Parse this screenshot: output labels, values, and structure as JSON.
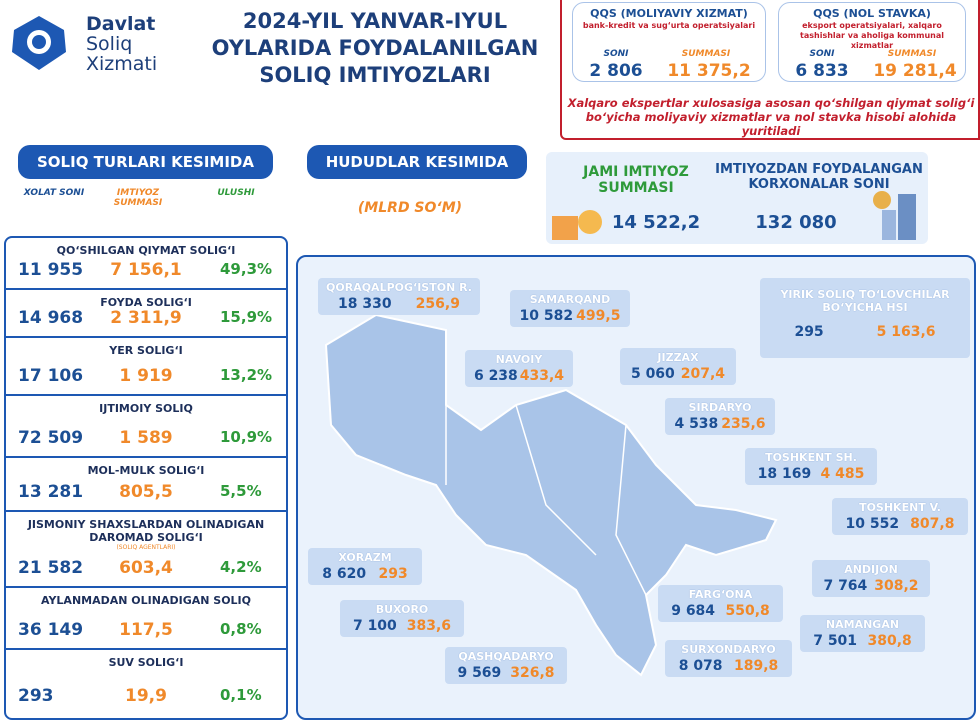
{
  "logo": {
    "lines": [
      "Davlat",
      "Soliq",
      "Xizmati"
    ]
  },
  "title": [
    "2024-YIL YANVAR-IYUL",
    "OYLARIDA FOYDALANILGAN",
    "SOLIQ IMTIYOZLARI"
  ],
  "qqs": [
    {
      "title": "QQS (MOLIYAVIY XIZMAT)",
      "subtitle": "bank-kredit va sug‘urta operatsiyalari",
      "count_label": "SONI",
      "sum_label": "SUMMASI",
      "count": "2 806",
      "sum": "11 375,2"
    },
    {
      "title": "QQS (NOL STAVKA)",
      "subtitle": "eksport operatsiyalari, xalqaro tashishlar va aholiga kommunal xizmatlar",
      "count_label": "SONI",
      "sum_label": "SUMMASI",
      "count": "6 833",
      "sum": "19 281,4"
    }
  ],
  "qqs_note": "Xalqaro ekspertlar xulosasiga asosan qo‘shilgan qiymat solig‘i bo‘yicha moliyaviy xizmatlar va nol stavka hisobi alohida yuritiladi",
  "tax_section": {
    "heading": "SOLIQ TURLARI KESIMIDA",
    "columns": [
      "XOLAT SONI",
      "IMTIYOZ SUMMASI",
      "ULUSHI"
    ],
    "rows": [
      {
        "name": "QO‘SHILGAN QIYMAT SOLIG‘I",
        "count": "11 955",
        "sum": "7 156,1",
        "share": "49,3%"
      },
      {
        "name": "FOYDA SOLIG‘I",
        "count": "14 968",
        "sum": "2 311,9",
        "share": "15,9%"
      },
      {
        "name": "YER SOLIG‘I",
        "count": "17 106",
        "sum": "1 919",
        "share": "13,2%"
      },
      {
        "name": "IJTIMOIY SOLIQ",
        "count": "72 509",
        "sum": "1 589",
        "share": "10,9%"
      },
      {
        "name": "MOL-MULK SOLIG‘I",
        "count": "13 281",
        "sum": "805,5",
        "share": "5,5%"
      },
      {
        "name": "JISMONIY SHAXSLARDAN OLINADIGAN DAROMAD SOLIG‘I",
        "note": "(SOLIQ AGENTLARI)",
        "count": "21 582",
        "sum": "603,4",
        "share": "4,2%"
      },
      {
        "name": "AYLANMADAN OLINADIGAN SOLIQ",
        "count": "36 149",
        "sum": "117,5",
        "share": "0,8%"
      },
      {
        "name": "SUV SOLIG‘I",
        "count": "293",
        "sum": "19,9",
        "share": "0,1%"
      }
    ]
  },
  "region_section": {
    "heading": "HUDUDLAR KESIMIDA",
    "unit": "(MLRD SO‘M)"
  },
  "totals": {
    "sum_label": "JAMI IMTIYOZ SUMMASI",
    "sum": "14 522,2",
    "count_label": "IMTIYOZDAN FOYDALANGAN KORXONALAR SONI",
    "count": "132 080"
  },
  "regions": [
    {
      "name": "QORAQALPOG‘ISTON R.",
      "count": "18 330",
      "sum": "256,9"
    },
    {
      "name": "SAMARQAND",
      "count": "10 582",
      "sum": "499,5"
    },
    {
      "name": "NAVOIY",
      "count": "6 238",
      "sum": "433,4"
    },
    {
      "name": "JIZZAX",
      "count": "5 060",
      "sum": "207,4"
    },
    {
      "name": "SIRDARYO",
      "count": "4 538",
      "sum": "235,6"
    },
    {
      "name": "TOSHKENT SH.",
      "count": "18 169",
      "sum": "4 485"
    },
    {
      "name": "TOSHKENT V.",
      "count": "10 552",
      "sum": "807,8"
    },
    {
      "name": "XORAZM",
      "count": "8 620",
      "sum": "293"
    },
    {
      "name": "ANDIJON",
      "count": "7 764",
      "sum": "308,2"
    },
    {
      "name": "BUXORO",
      "count": "7 100",
      "sum": "383,6"
    },
    {
      "name": "FARG‘ONA",
      "count": "9 684",
      "sum": "550,8"
    },
    {
      "name": "NAMANGAN",
      "count": "7 501",
      "sum": "380,8"
    },
    {
      "name": "QASHQADARYO",
      "count": "9 569",
      "sum": "326,8"
    },
    {
      "name": "SURXONDARYO",
      "count": "8 078",
      "sum": "189,8"
    },
    {
      "name": "YIRIK SOLIQ TO‘LOVCHILAR BO‘YICHA HSI",
      "count": "295",
      "sum": "5 163,6"
    }
  ]
}
